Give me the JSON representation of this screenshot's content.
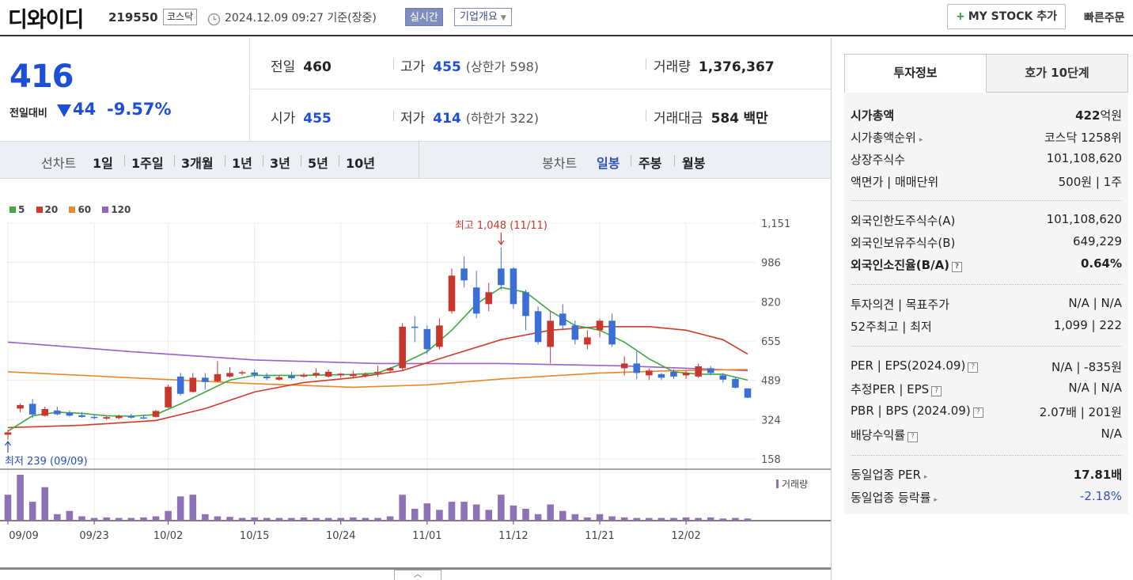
{
  "header": {
    "name": "디와이디",
    "code": "219550",
    "market": "코스닥",
    "datetime": "2024.12.09 09:27 기준(장중)",
    "realtime_label": "실시간",
    "company_label": "기업개요",
    "mystock_label": "MY STOCK 추가",
    "quick_order_label": "빠른주문"
  },
  "summary": {
    "price": "416",
    "change_label": "전일대비",
    "change_amount": "44",
    "change_percent": "-9.57%",
    "direction": "down",
    "prev_close_label": "전일",
    "prev_close": "460",
    "high_label": "고가",
    "high": "455",
    "upper_limit": "(상한가 598)",
    "volume_label": "거래량",
    "volume": "1,376,367",
    "open_label": "시가",
    "open": "455",
    "low_label": "저가",
    "low": "414",
    "lower_limit": "(하한가 322)",
    "value_label": "거래대금",
    "value": "584",
    "value_unit": "백만"
  },
  "chart_tabs": {
    "line_label": "선차트",
    "line_ranges": [
      "1일",
      "1주일",
      "3개월",
      "1년",
      "3년",
      "5년",
      "10년"
    ],
    "candle_label": "봉차트",
    "candle_ranges": [
      "일봉",
      "주봉",
      "월봉"
    ],
    "active_candle": "일봉"
  },
  "chart_data": {
    "type": "candlestick",
    "legend": [
      {
        "name": "5",
        "color": "#3faa3f"
      },
      {
        "name": "20",
        "color": "#d23a2a"
      },
      {
        "name": "60",
        "color": "#e8892a"
      },
      {
        "name": "120",
        "color": "#9a5fc8"
      }
    ],
    "y_ticks": [
      "1,151",
      "986",
      "820",
      "655",
      "489",
      "324",
      "158"
    ],
    "y_range": [
      158,
      1151
    ],
    "x_ticks": [
      "09/09",
      "09/23",
      "10/02",
      "10/15",
      "10/24",
      "11/01",
      "11/12",
      "11/21",
      "12/02"
    ],
    "high_annotation": "최고 1,048 (11/11)",
    "low_annotation": "최저 239 (09/09)",
    "volume_label": "거래량",
    "colors": {
      "up": "#c8372d",
      "down": "#3b6fd6"
    },
    "candles": [
      {
        "o": 260,
        "h": 280,
        "l": 239,
        "c": 270
      },
      {
        "o": 370,
        "h": 392,
        "l": 355,
        "c": 385
      },
      {
        "o": 390,
        "h": 410,
        "l": 330,
        "c": 345
      },
      {
        "o": 340,
        "h": 378,
        "l": 336,
        "c": 368
      },
      {
        "o": 362,
        "h": 378,
        "l": 342,
        "c": 346
      },
      {
        "o": 352,
        "h": 362,
        "l": 336,
        "c": 340
      },
      {
        "o": 342,
        "h": 355,
        "l": 332,
        "c": 335
      },
      {
        "o": 335,
        "h": 345,
        "l": 325,
        "c": 330
      },
      {
        "o": 328,
        "h": 340,
        "l": 322,
        "c": 334
      },
      {
        "o": 330,
        "h": 345,
        "l": 325,
        "c": 338
      },
      {
        "o": 338,
        "h": 348,
        "l": 328,
        "c": 332
      },
      {
        "o": 333,
        "h": 342,
        "l": 326,
        "c": 330
      },
      {
        "o": 335,
        "h": 365,
        "l": 333,
        "c": 360
      },
      {
        "o": 375,
        "h": 470,
        "l": 372,
        "c": 462
      },
      {
        "o": 505,
        "h": 520,
        "l": 425,
        "c": 432
      },
      {
        "o": 440,
        "h": 520,
        "l": 438,
        "c": 500
      },
      {
        "o": 500,
        "h": 520,
        "l": 450,
        "c": 482
      },
      {
        "o": 485,
        "h": 570,
        "l": 480,
        "c": 515
      },
      {
        "o": 505,
        "h": 545,
        "l": 500,
        "c": 520
      },
      {
        "o": 520,
        "h": 530,
        "l": 510,
        "c": 523
      },
      {
        "o": 522,
        "h": 535,
        "l": 500,
        "c": 512
      },
      {
        "o": 505,
        "h": 520,
        "l": 490,
        "c": 498
      },
      {
        "o": 492,
        "h": 510,
        "l": 488,
        "c": 502
      },
      {
        "o": 508,
        "h": 525,
        "l": 492,
        "c": 498
      },
      {
        "o": 505,
        "h": 520,
        "l": 500,
        "c": 512
      },
      {
        "o": 510,
        "h": 540,
        "l": 500,
        "c": 520
      },
      {
        "o": 505,
        "h": 535,
        "l": 500,
        "c": 525
      },
      {
        "o": 510,
        "h": 520,
        "l": 500,
        "c": 517
      },
      {
        "o": 507,
        "h": 530,
        "l": 500,
        "c": 515
      },
      {
        "o": 510,
        "h": 522,
        "l": 500,
        "c": 514
      },
      {
        "o": 520,
        "h": 550,
        "l": 505,
        "c": 525
      },
      {
        "o": 530,
        "h": 545,
        "l": 520,
        "c": 540
      },
      {
        "o": 540,
        "h": 730,
        "l": 530,
        "c": 715
      },
      {
        "o": 715,
        "h": 760,
        "l": 650,
        "c": 710
      },
      {
        "o": 705,
        "h": 720,
        "l": 600,
        "c": 620
      },
      {
        "o": 630,
        "h": 750,
        "l": 620,
        "c": 720
      },
      {
        "o": 780,
        "h": 960,
        "l": 770,
        "c": 930
      },
      {
        "o": 960,
        "h": 1010,
        "l": 880,
        "c": 910
      },
      {
        "o": 880,
        "h": 950,
        "l": 750,
        "c": 770
      },
      {
        "o": 810,
        "h": 900,
        "l": 780,
        "c": 860
      },
      {
        "o": 960,
        "h": 1048,
        "l": 870,
        "c": 890
      },
      {
        "o": 960,
        "h": 965,
        "l": 790,
        "c": 810
      },
      {
        "o": 860,
        "h": 870,
        "l": 700,
        "c": 760
      },
      {
        "o": 780,
        "h": 800,
        "l": 640,
        "c": 650
      },
      {
        "o": 630,
        "h": 780,
        "l": 560,
        "c": 740
      },
      {
        "o": 770,
        "h": 810,
        "l": 700,
        "c": 720
      },
      {
        "o": 720,
        "h": 740,
        "l": 640,
        "c": 660
      },
      {
        "o": 640,
        "h": 700,
        "l": 620,
        "c": 670
      },
      {
        "o": 700,
        "h": 750,
        "l": 670,
        "c": 740
      },
      {
        "o": 740,
        "h": 770,
        "l": 630,
        "c": 640
      },
      {
        "o": 540,
        "h": 590,
        "l": 510,
        "c": 560
      },
      {
        "o": 560,
        "h": 610,
        "l": 495,
        "c": 520
      },
      {
        "o": 510,
        "h": 540,
        "l": 490,
        "c": 530
      },
      {
        "o": 515,
        "h": 520,
        "l": 490,
        "c": 500
      },
      {
        "o": 525,
        "h": 535,
        "l": 495,
        "c": 505
      },
      {
        "o": 510,
        "h": 530,
        "l": 495,
        "c": 520
      },
      {
        "o": 505,
        "h": 560,
        "l": 500,
        "c": 548
      },
      {
        "o": 540,
        "h": 550,
        "l": 510,
        "c": 520
      },
      {
        "o": 510,
        "h": 520,
        "l": 480,
        "c": 492
      },
      {
        "o": 495,
        "h": 500,
        "l": 455,
        "c": 458
      },
      {
        "o": 455,
        "h": 455,
        "l": 414,
        "c": 416
      }
    ],
    "ma5": [
      [
        0,
        275
      ],
      [
        2,
        340
      ],
      [
        4,
        355
      ],
      [
        6,
        350
      ],
      [
        8,
        340
      ],
      [
        10,
        338
      ],
      [
        12,
        345
      ],
      [
        14,
        390
      ],
      [
        16,
        440
      ],
      [
        18,
        490
      ],
      [
        20,
        510
      ],
      [
        22,
        510
      ],
      [
        24,
        510
      ],
      [
        26,
        512
      ],
      [
        28,
        514
      ],
      [
        30,
        520
      ],
      [
        32,
        560
      ],
      [
        34,
        610
      ],
      [
        36,
        700
      ],
      [
        38,
        810
      ],
      [
        40,
        880
      ],
      [
        42,
        860
      ],
      [
        44,
        780
      ],
      [
        46,
        720
      ],
      [
        48,
        700
      ],
      [
        50,
        650
      ],
      [
        52,
        580
      ],
      [
        54,
        525
      ],
      [
        56,
        515
      ],
      [
        58,
        515
      ],
      [
        60,
        490
      ]
    ],
    "ma20": [
      [
        0,
        290
      ],
      [
        6,
        300
      ],
      [
        12,
        320
      ],
      [
        16,
        370
      ],
      [
        20,
        440
      ],
      [
        24,
        480
      ],
      [
        28,
        500
      ],
      [
        32,
        530
      ],
      [
        35,
        580
      ],
      [
        40,
        660
      ],
      [
        44,
        700
      ],
      [
        48,
        715
      ],
      [
        52,
        715
      ],
      [
        55,
        700
      ],
      [
        58,
        660
      ],
      [
        60,
        600
      ]
    ],
    "ma60": [
      [
        0,
        525
      ],
      [
        10,
        500
      ],
      [
        20,
        475
      ],
      [
        28,
        460
      ],
      [
        34,
        470
      ],
      [
        40,
        495
      ],
      [
        48,
        520
      ],
      [
        54,
        530
      ],
      [
        60,
        535
      ]
    ],
    "ma120": [
      [
        0,
        650
      ],
      [
        10,
        610
      ],
      [
        20,
        575
      ],
      [
        30,
        560
      ],
      [
        40,
        560
      ],
      [
        50,
        550
      ],
      [
        60,
        530
      ]
    ],
    "volumes": [
      0.48,
      0.85,
      0.35,
      0.62,
      0.12,
      0.18,
      0.08,
      0.05,
      0.06,
      0.05,
      0.05,
      0.06,
      0.08,
      0.18,
      0.45,
      0.48,
      0.12,
      0.08,
      0.07,
      0.05,
      0.06,
      0.05,
      0.05,
      0.05,
      0.06,
      0.05,
      0.05,
      0.05,
      0.06,
      0.05,
      0.05,
      0.08,
      0.48,
      0.22,
      0.32,
      0.2,
      0.35,
      0.35,
      0.3,
      0.2,
      0.48,
      0.28,
      0.22,
      0.12,
      0.3,
      0.18,
      0.12,
      0.06,
      0.12,
      0.08,
      0.06,
      0.05,
      0.05,
      0.05,
      0.05,
      0.06,
      0.05,
      0.06,
      0.04,
      0.05,
      0.04
    ]
  },
  "right_panel": {
    "tab_invest": "투자정보",
    "tab_orderbook": "호가 10단계",
    "rows": {
      "mktcap_label": "시가총액",
      "mktcap_value": "422",
      "mktcap_unit": "억원",
      "rank_label": "시가총액순위",
      "rank_value": "코스닥 1258위",
      "shares_label": "상장주식수",
      "shares_value": "101,108,620",
      "par_label": "액면가 | 매매단위",
      "par_value": "500원 | 1주",
      "foreign_limit_label": "외국인한도주식수(A)",
      "foreign_limit_value": "101,108,620",
      "foreign_hold_label": "외국인보유주식수(B)",
      "foreign_hold_value": "649,229",
      "foreign_ratio_label": "외국인소진율(B/A)",
      "foreign_ratio_value": "0.64%",
      "opinion_label": "투자의견 | 목표주가",
      "opinion_value": "N/A | N/A",
      "w52_label": "52주최고 | 최저",
      "w52_value": "1,099 | 222",
      "per_label": "PER | EPS(2024.09)",
      "per_value": "N/A | -835원",
      "eper_label": "추정PER | EPS",
      "eper_value": "N/A | N/A",
      "pbr_label": "PBR | BPS (2024.09)",
      "pbr_value": "2.07배 | 201원",
      "div_label": "배당수익률",
      "div_value": "N/A",
      "ind_per_label": "동일업종 PER",
      "ind_per_value": "17.81배",
      "ind_chg_label": "동일업종 등락률",
      "ind_chg_value": "-2.18%"
    }
  }
}
